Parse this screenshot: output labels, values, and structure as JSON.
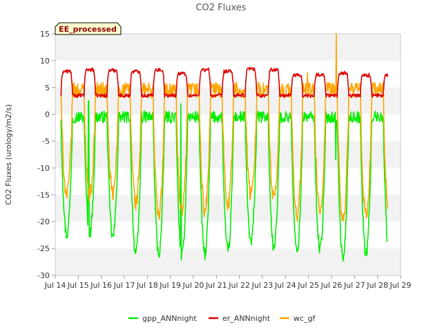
{
  "chart_data": {
    "type": "line",
    "title": "CO2 Fluxes",
    "xlabel": "",
    "ylabel": "CO2 Fluxes (urology/m2/s)",
    "badge": "EE_processed",
    "xlim": [
      14,
      29
    ],
    "ylim": [
      -30,
      15
    ],
    "x_ticks": [
      14,
      15,
      16,
      17,
      18,
      19,
      20,
      21,
      22,
      23,
      24,
      25,
      26,
      27,
      28,
      29
    ],
    "x_tick_labels": [
      "Jul 14",
      "Jul 15",
      "Jul 16",
      "Jul 17",
      "Jul 18",
      "Jul 19",
      "Jul 20",
      "Jul 21",
      "Jul 22",
      "Jul 23",
      "Jul 24",
      "Jul 25",
      "Jul 26",
      "Jul 27",
      "Jul 28",
      "Jul 29"
    ],
    "y_ticks": [
      -30,
      -25,
      -20,
      -15,
      -10,
      -5,
      0,
      5,
      10,
      15
    ],
    "y_tick_labels": [
      "-30",
      "-25",
      "-20",
      "-15",
      "-10",
      "-5",
      "0",
      "5",
      "10",
      "15"
    ],
    "grid_bands": true,
    "legend_position": "bottom",
    "data_range": [
      14.25,
      28.45
    ],
    "series": [
      {
        "name": "gpp_ANNnight",
        "color": "#00ee00",
        "night_level": -0.5,
        "day_min": [
          -22.5,
          -22.0,
          -23.0,
          -26.0,
          -26.0,
          -26.5,
          -26.0,
          -25.5,
          -24.0,
          -25.0,
          -25.5,
          -25.0,
          -27.0,
          -26.0,
          -26.0
        ],
        "spikes": [
          [
            15.45,
            2.5
          ],
          [
            19.45,
            2.0
          ],
          [
            26.18,
            -8.5
          ]
        ]
      },
      {
        "name": "er_ANNnight",
        "color": "#dd0000",
        "night_level": 3.5,
        "day_max": [
          8.0,
          8.3,
          8.2,
          8.0,
          8.3,
          7.6,
          8.3,
          8.0,
          8.5,
          8.3,
          7.3,
          7.4,
          7.7,
          7.3,
          7.2
        ],
        "spikes": []
      },
      {
        "name": "wc_gf",
        "color": "#ffa500",
        "night_level": 4.5,
        "day_min": [
          -15.0,
          -15.0,
          -15.0,
          -16.5,
          -19.0,
          -18.5,
          -18.0,
          -16.5,
          -15.0,
          -16.0,
          -19.0,
          -18.5,
          -20.0,
          -19.0,
          -19.0
        ],
        "spikes": [
          [
            26.2,
            15.0
          ],
          [
            24.95,
            7.8
          ]
        ]
      }
    ]
  }
}
